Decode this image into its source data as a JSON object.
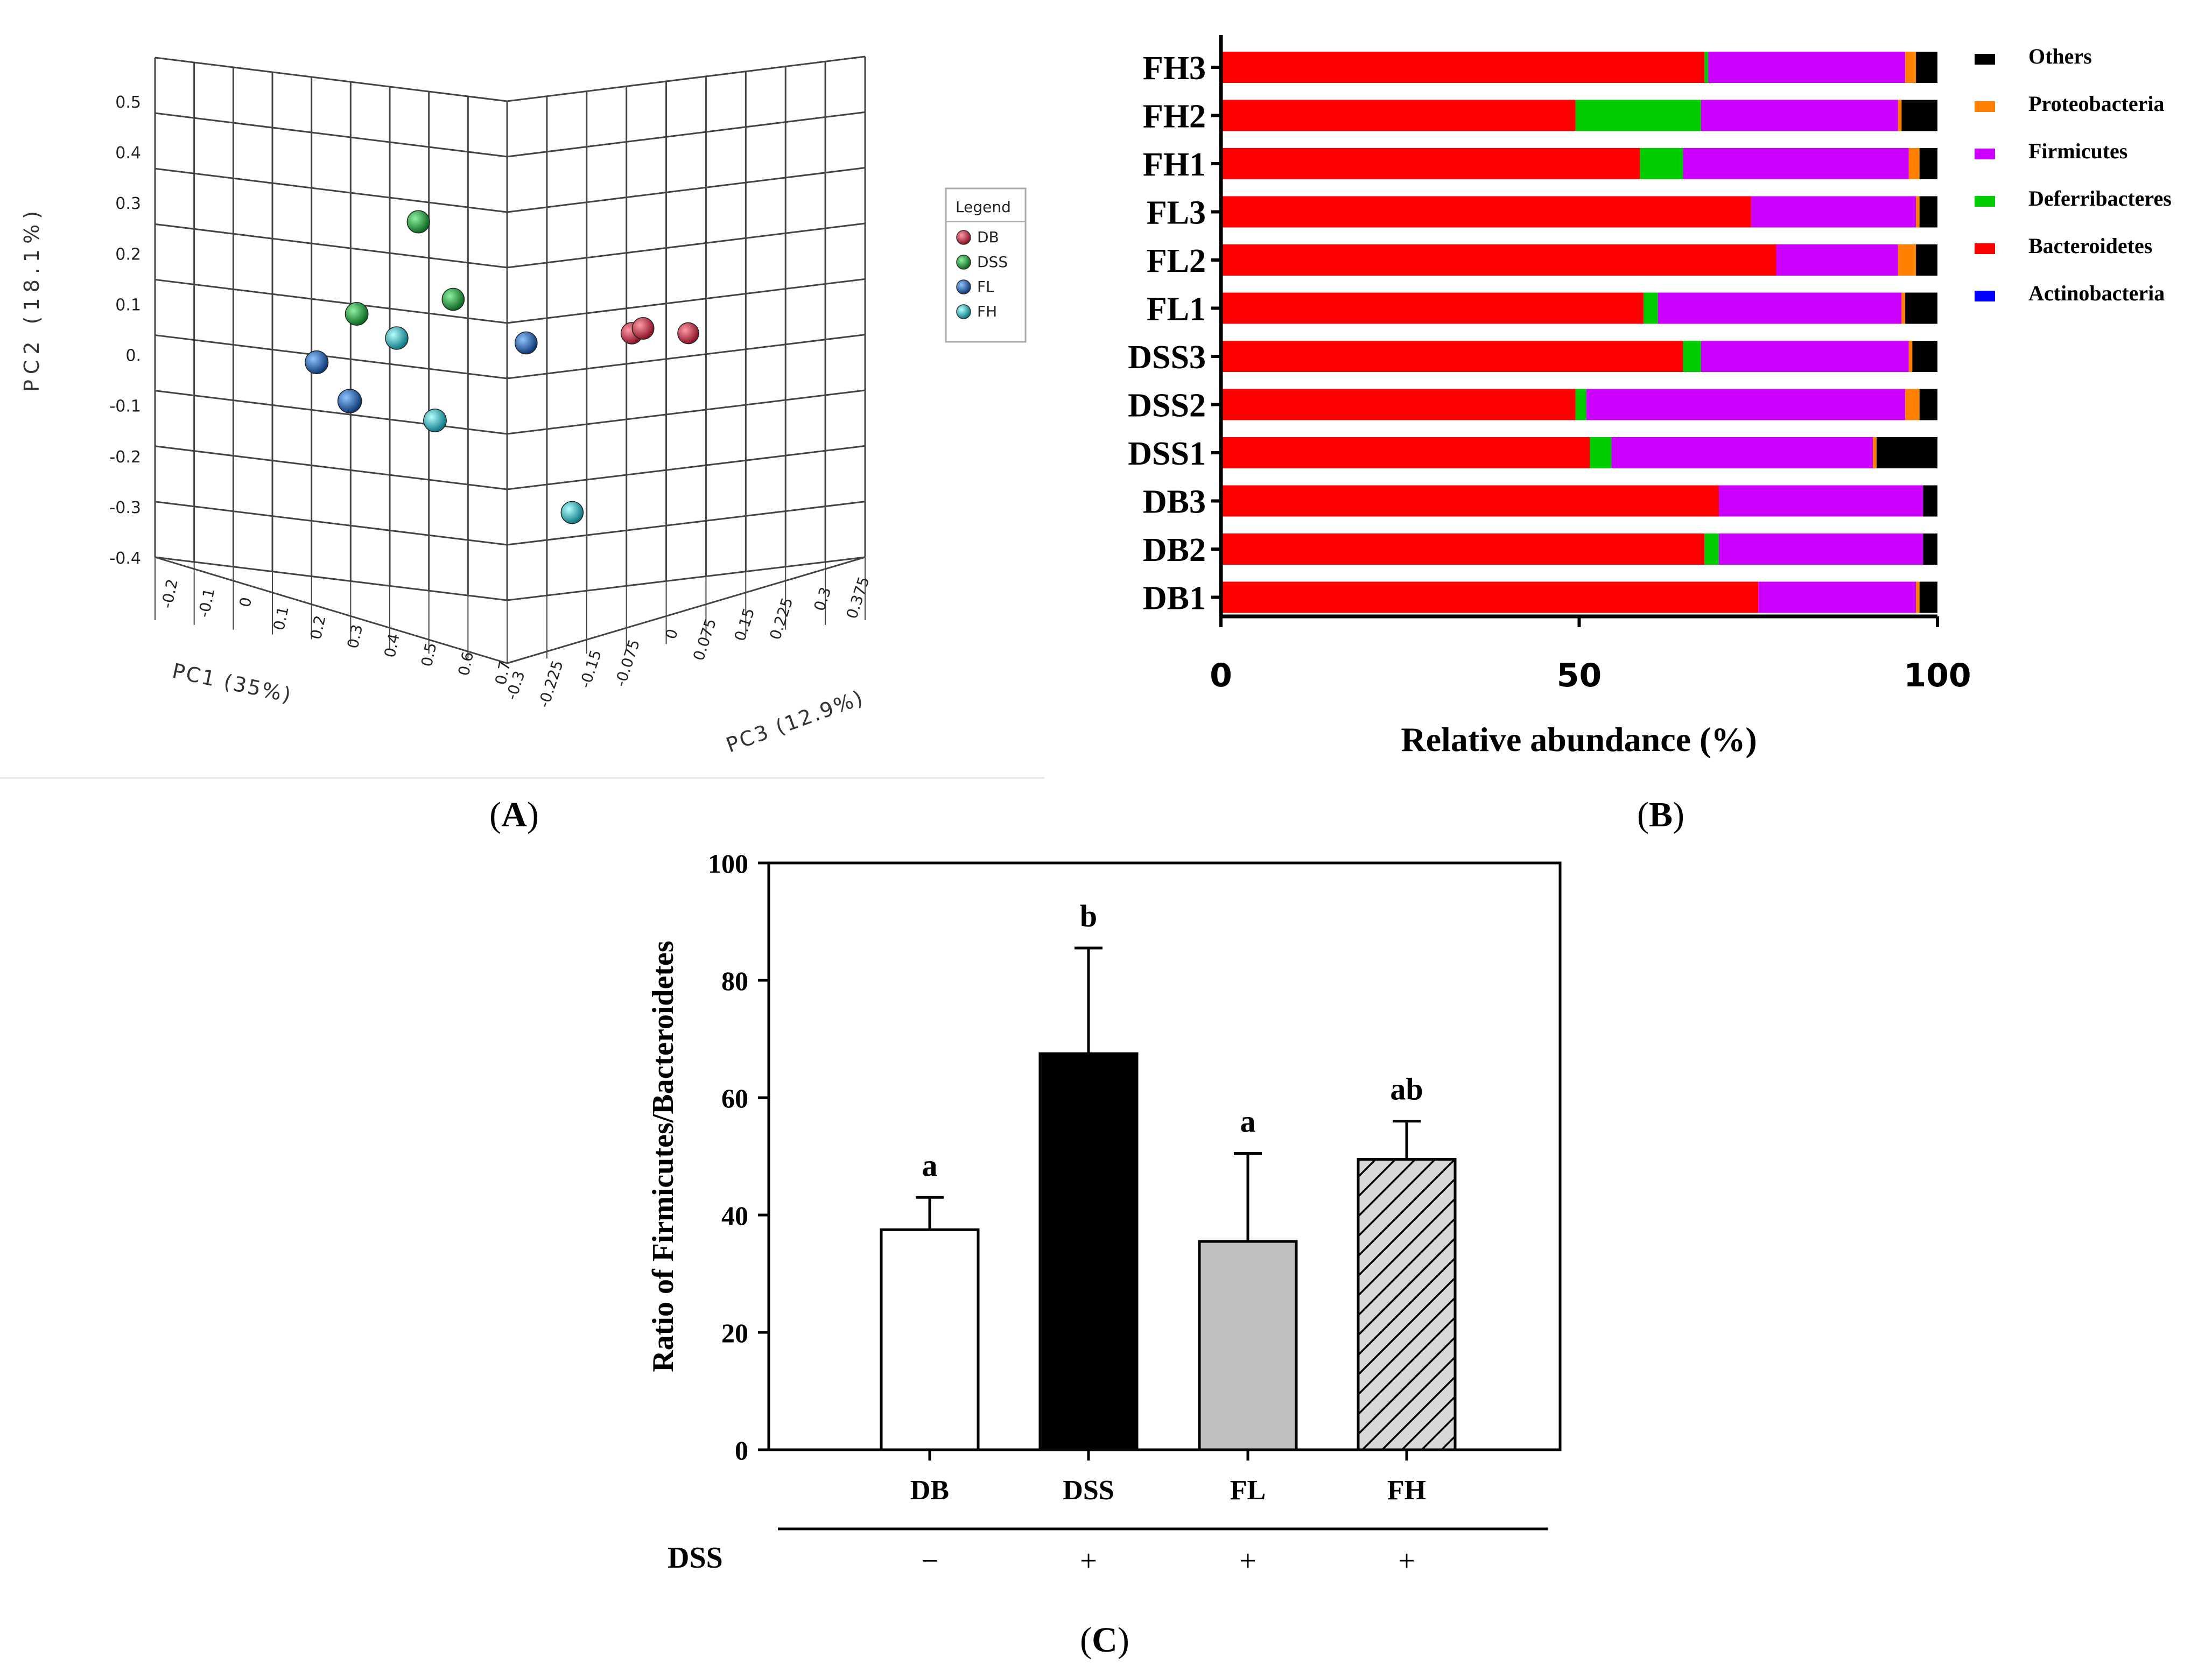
{
  "panels": {
    "A": {
      "label": "A"
    },
    "B": {
      "label": "B"
    },
    "C": {
      "label": "C"
    }
  },
  "colors": {
    "DB": "#c8334a",
    "DSS": "#1aa33a",
    "FL": "#1f64b4",
    "FH": "#1fb7c6",
    "Others": "#000000",
    "Proteobacteria": "#ff8000",
    "Firmicutes": "#cc00ff",
    "Deferribacteres": "#00cc00",
    "Bacteroidetes": "#ff0000",
    "Actinobacteria": "#0000ff"
  },
  "chart_data": [
    {
      "id": "pca",
      "type": "scatter",
      "title": "",
      "axes": {
        "pc1": {
          "label": "PC1 (35%)",
          "ticks": [
            "-0.2",
            "-0.1",
            "0",
            "0.1",
            "0.2",
            "0.3",
            "0.4",
            "0.5",
            "0.6",
            "0.7"
          ],
          "range": [
            -0.2,
            0.7
          ]
        },
        "pc2": {
          "label": "PC2 (18.1%)",
          "ticks": [
            "-0.4",
            "-0.3",
            "-0.2",
            "-0.1",
            "0.",
            "0.1",
            "0.2",
            "0.3",
            "0.4",
            "0.5"
          ],
          "range": [
            -0.4,
            0.5
          ]
        },
        "pc3": {
          "label": "PC3 (12.9%)",
          "ticks": [
            "-0.3",
            "-0.225",
            "-0.15",
            "-0.075",
            "0",
            "0.075",
            "0.15",
            "0.225",
            "0.3",
            "0.375"
          ],
          "range": [
            -0.3,
            0.375
          ]
        }
      },
      "legend": {
        "title": "Legend",
        "entries": [
          "DB",
          "DSS",
          "FL",
          "FH"
        ],
        "position": "right"
      },
      "points": [
        {
          "group": "DB",
          "pc1": 0.42,
          "pc2": 0.04,
          "pc3": 0.05
        },
        {
          "group": "DB",
          "pc1": 0.47,
          "pc2": 0.05,
          "pc3": 0.02
        },
        {
          "group": "DB",
          "pc1": 0.5,
          "pc2": 0.04,
          "pc3": 0.1
        },
        {
          "group": "DSS",
          "pc1": 0.05,
          "pc2": 0.27,
          "pc3": -0.06
        },
        {
          "group": "DSS",
          "pc1": -0.05,
          "pc2": 0.08,
          "pc3": -0.1
        },
        {
          "group": "DSS",
          "pc1": 0.1,
          "pc2": 0.11,
          "pc3": -0.03
        },
        {
          "group": "FL",
          "pc1": -0.12,
          "pc2": -0.02,
          "pc3": -0.12
        },
        {
          "group": "FL",
          "pc1": 0.02,
          "pc2": -0.1,
          "pc3": -0.2
        },
        {
          "group": "FL",
          "pc1": 0.25,
          "pc2": 0.02,
          "pc3": -0.02
        },
        {
          "group": "FH",
          "pc1": 0.02,
          "pc2": 0.03,
          "pc3": -0.08
        },
        {
          "group": "FH",
          "pc1": 0.12,
          "pc2": -0.14,
          "pc3": -0.1
        },
        {
          "group": "FH",
          "pc1": 0.35,
          "pc2": -0.33,
          "pc3": -0.02
        }
      ]
    },
    {
      "id": "composition",
      "type": "bar",
      "orientation": "horizontal",
      "stacked": true,
      "xlabel": "Relative abundance (%)",
      "xlim": [
        0,
        100
      ],
      "xticks": [
        "0",
        "50",
        "100"
      ],
      "categories": [
        "FH3",
        "FH2",
        "FH1",
        "FL3",
        "FL2",
        "FL1",
        "DSS3",
        "DSS2",
        "DSS1",
        "DB3",
        "DB2",
        "DB1"
      ],
      "legend": {
        "entries": [
          "Others",
          "Proteobacteria",
          "Firmicutes",
          "Deferribacteres",
          "Bacteroidetes",
          "Actinobacteria"
        ],
        "position": "right"
      },
      "series": [
        {
          "name": "Actinobacteria",
          "values": [
            0,
            0,
            0,
            0,
            0,
            0,
            0,
            0,
            0,
            0,
            0,
            0
          ]
        },
        {
          "name": "Bacteroidetes",
          "values": [
            67.5,
            49.5,
            58.5,
            74,
            77.5,
            59,
            64.5,
            49.5,
            51.5,
            69.5,
            67.5,
            75
          ]
        },
        {
          "name": "Deferribacteres",
          "values": [
            0.5,
            17.5,
            6,
            0,
            0,
            2,
            2.5,
            1.5,
            3,
            0,
            2,
            0
          ]
        },
        {
          "name": "Firmicutes",
          "values": [
            27.5,
            27.5,
            31.5,
            23,
            17,
            34,
            29,
            44.5,
            36.5,
            28.5,
            28.5,
            22
          ]
        },
        {
          "name": "Proteobacteria",
          "values": [
            1.5,
            0.5,
            1.5,
            0.5,
            2.5,
            0.5,
            0.5,
            2,
            0.5,
            0,
            0,
            0.5
          ]
        },
        {
          "name": "Others",
          "values": [
            3,
            5,
            2.5,
            2.5,
            3,
            4.5,
            3.5,
            2.5,
            8.5,
            2,
            2,
            2.5
          ]
        }
      ]
    },
    {
      "id": "ratio",
      "type": "bar",
      "ylabel": "Ratio of Firmicutes/Bacteroidetes",
      "ylim": [
        0,
        100
      ],
      "yticks": [
        "0",
        "20",
        "40",
        "60",
        "80",
        "100"
      ],
      "categories": [
        "DB",
        "DSS",
        "FL",
        "FH"
      ],
      "values": [
        37.5,
        67.5,
        35.5,
        49.5
      ],
      "errors": [
        5.5,
        18,
        15,
        6.5
      ],
      "significance": [
        "a",
        "b",
        "a",
        "ab"
      ],
      "treatment": {
        "label": "DSS",
        "values": [
          "−",
          "+",
          "+",
          "+"
        ]
      }
    }
  ]
}
